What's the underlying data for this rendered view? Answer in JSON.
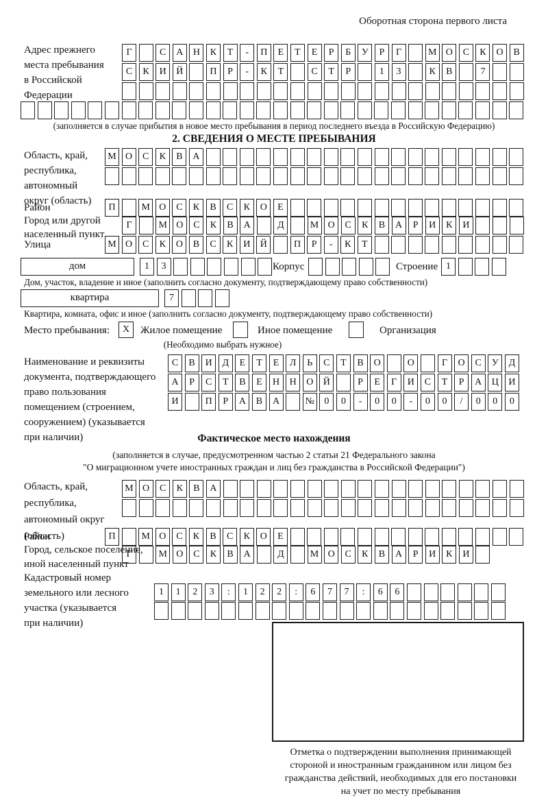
{
  "page_header": "Оборотная сторона первого листа",
  "prev_address": {
    "label_lines": [
      "Адрес прежнего",
      "места пребывания",
      "в Российской",
      "Федерации"
    ],
    "row1": {
      "text": "Г САНКТ-ПЕТЕРБУРГ МОСКОВ",
      "len": 24
    },
    "row2": {
      "text": "СКИЙ ПР-КТ СТР 13 КВ 7",
      "len": 24
    },
    "row3": {
      "text": "",
      "len": 24
    },
    "row4": {
      "text": "",
      "len": 30
    },
    "caption": "(заполняется в случае прибытия в новое место пребывания в период последнего въезда в Российскую Федерацию)"
  },
  "section2": {
    "title": "2. СВЕДЕНИЯ О МЕСТЕ ПРЕБЫВАНИЯ",
    "oblast": {
      "label_lines": [
        "Область, край,",
        "республика,",
        "автономный",
        "округ (область)"
      ],
      "row1": {
        "text": "МОСКВА",
        "len": 25
      },
      "row2": {
        "text": "",
        "len": 25
      }
    },
    "raion": {
      "label": "Район",
      "row": {
        "text": "П МОСКВСКОЕ",
        "len": 25
      }
    },
    "gorod": {
      "label_lines": [
        "Город или другой",
        "населенный пункт"
      ],
      "row": {
        "text": "Г МОСКВА Д МОСКВАРИКИ",
        "len": 24
      }
    },
    "ulitsa": {
      "label": "Улица",
      "row": {
        "text": "МОСКОВСКИЙ ПР-КТ",
        "len": 25
      }
    },
    "dom": {
      "box_label": "дом",
      "cells": {
        "text": "13",
        "len": 8
      },
      "korpus_label": "Корпус",
      "korpus_cells": {
        "text": "",
        "len": 5
      },
      "stroenie_label": "Строение",
      "stroenie_cells": {
        "text": "1",
        "len": 4
      },
      "caption": "Дом, участок, владение и иное (заполнить согласно документу, подтверждающему право собственности)"
    },
    "kvartira": {
      "box_label": "квартира",
      "cells": {
        "text": "7",
        "len": 4
      },
      "caption": "Квартира, комната, офис и иное (заполнить согласно документу, подтверждающему право собственности)"
    },
    "mesto": {
      "label": "Место пребывания:",
      "options": [
        {
          "label": "Жилое помещение",
          "mark": "X"
        },
        {
          "label": "Иное помещение",
          "mark": ""
        },
        {
          "label": "Организация",
          "mark": ""
        }
      ],
      "note": "(Необходимо выбрать нужное)"
    },
    "doc": {
      "label_lines": [
        "Наименование и реквизиты",
        "документа, подтверждающего",
        "право пользования",
        "помещением (строением,",
        "сооружением) (указывается",
        "при наличии)"
      ],
      "row1": {
        "text": "СВИДЕТЕЛЬСТВО О ГОСУД",
        "len": 21
      },
      "row2": {
        "text": "АРСТВЕННОЙ РЕГИСТРАЦИ",
        "len": 21
      },
      "row3": {
        "text": "И ПРАВА №00-00-00/000",
        "len": 21
      }
    }
  },
  "fact": {
    "title": "Фактическое место нахождения",
    "note1": "(заполняется в случае, предусмотренном частью 2 статьи 21 Федерального закона",
    "note2": "\"О миграционном учете иностранных граждан и лиц без гражданства в Российской Федерации\")",
    "oblast": {
      "label_lines": [
        "Область, край,",
        "республика,",
        "автономный округ",
        "(область)"
      ],
      "row1": {
        "text": "МОСКВА",
        "len": 24
      },
      "row2": {
        "text": "",
        "len": 24
      }
    },
    "raion": {
      "label": "Район",
      "row": {
        "text": "П МОСКВСКОЕ",
        "len": 25
      }
    },
    "gorod": {
      "label_lines": [
        "Город, сельское поселение,",
        "иной населенный пункт"
      ],
      "row": {
        "text": "Г МОСКВА Д МОСКВАРИКИ",
        "len": 22
      }
    },
    "kadastr": {
      "label_lines": [
        "Кадастровый номер",
        "земельного или лесного",
        "участка (указывается",
        "при наличии)"
      ],
      "row1": {
        "text": "1123:122:677:66",
        "len": 21
      },
      "row2": {
        "text": "",
        "len": 21
      }
    },
    "stamp_caption_lines": [
      "Отметка о подтверждении выполнения принимающей",
      "стороной и иностранным гражданином или лицом без",
      "гражданства действий, необходимых для его постановки",
      "на учет по месту пребывания"
    ]
  }
}
